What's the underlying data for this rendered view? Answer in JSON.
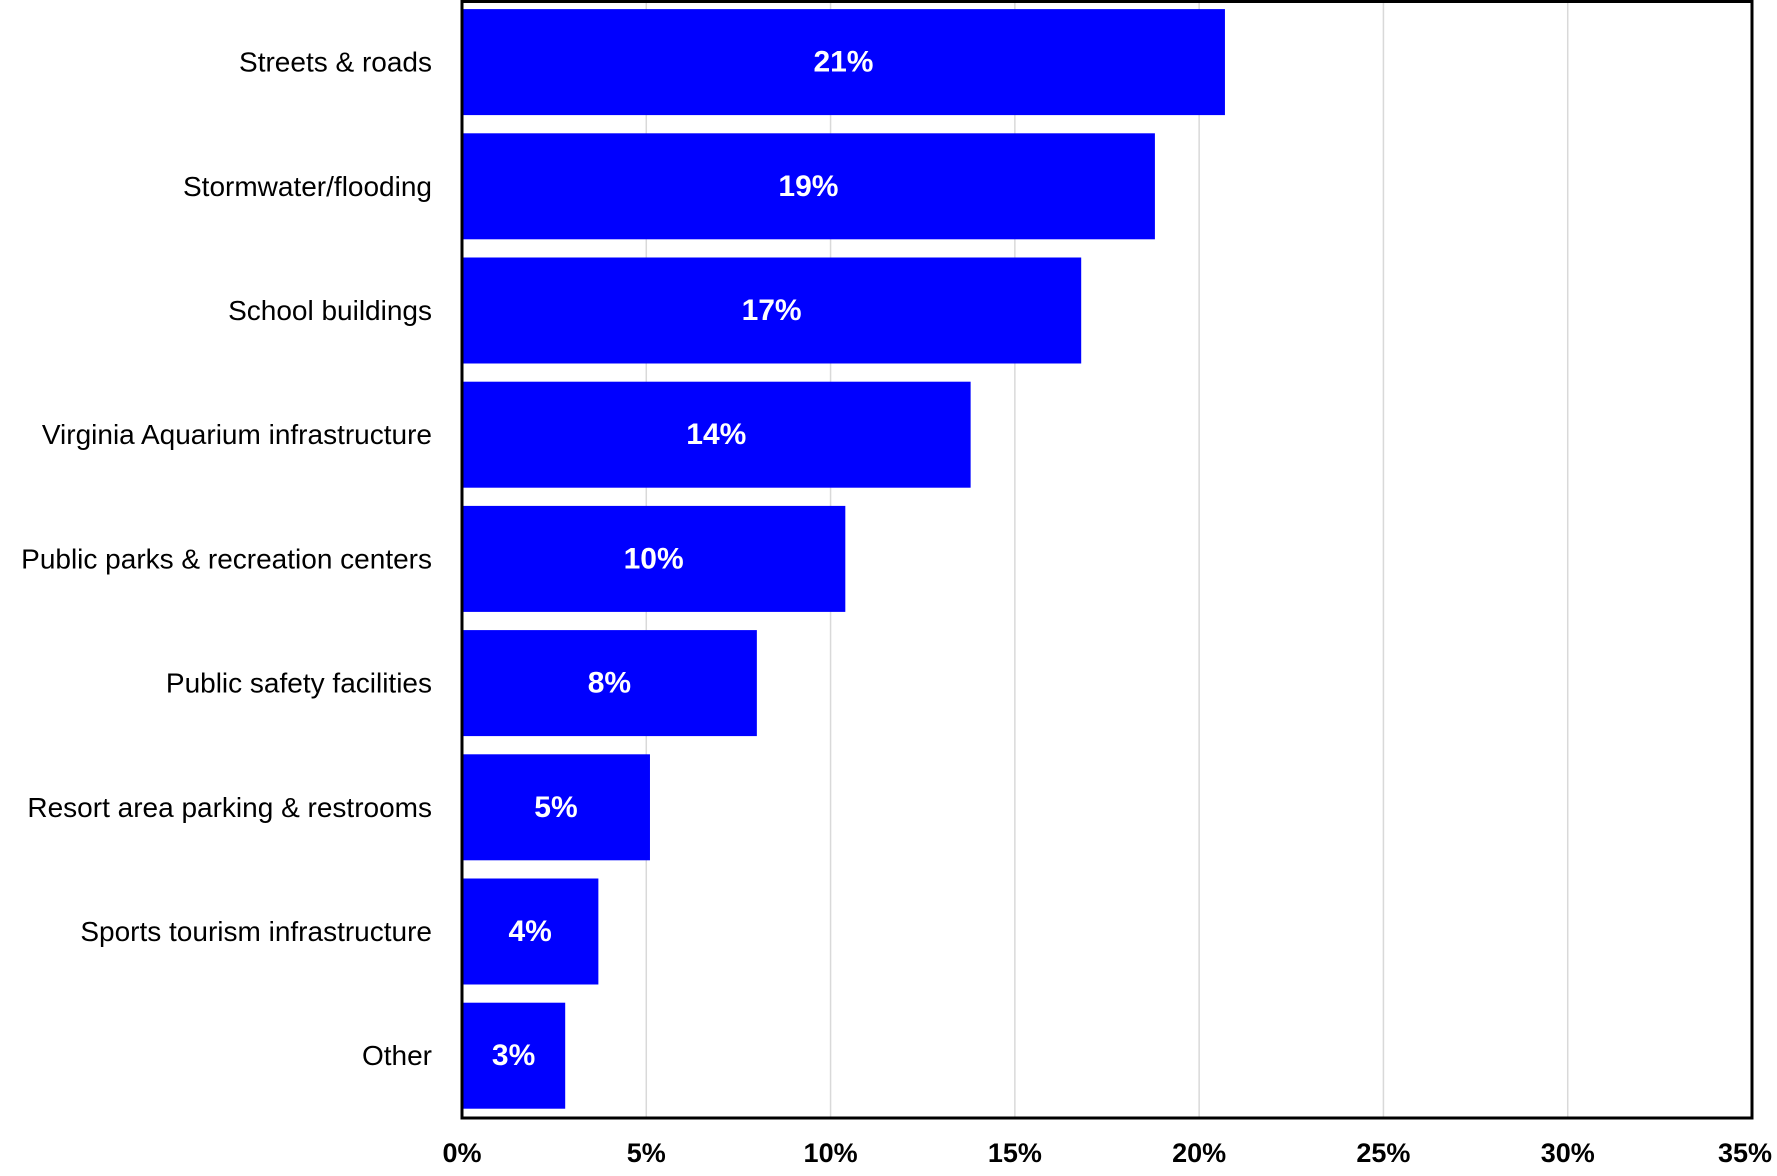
{
  "chart_data": {
    "type": "bar",
    "orientation": "horizontal",
    "categories": [
      "Streets & roads",
      "Stormwater/flooding",
      "School buildings",
      "Virginia Aquarium infrastructure",
      "Public parks & recreation centers",
      "Public safety facilities",
      "Resort area parking & restrooms",
      "Sports tourism infrastructure",
      "Other"
    ],
    "values": [
      20.7,
      18.8,
      16.8,
      13.8,
      10.4,
      8.0,
      5.1,
      3.7,
      2.8
    ],
    "value_labels": [
      "21%",
      "19%",
      "17%",
      "14%",
      "10%",
      "8%",
      "5%",
      "4%",
      "3%"
    ],
    "xlim": [
      0,
      35
    ],
    "x_ticks": [
      0,
      5,
      10,
      15,
      20,
      25,
      30,
      35
    ],
    "x_tick_labels": [
      "0%",
      "5%",
      "10%",
      "15%",
      "20%",
      "25%",
      "30%",
      "35%"
    ],
    "grid": "vertical",
    "bar_color": "#0000FF",
    "grid_color": "#D9D9D9",
    "title": "",
    "xlabel": "",
    "ylabel": ""
  }
}
